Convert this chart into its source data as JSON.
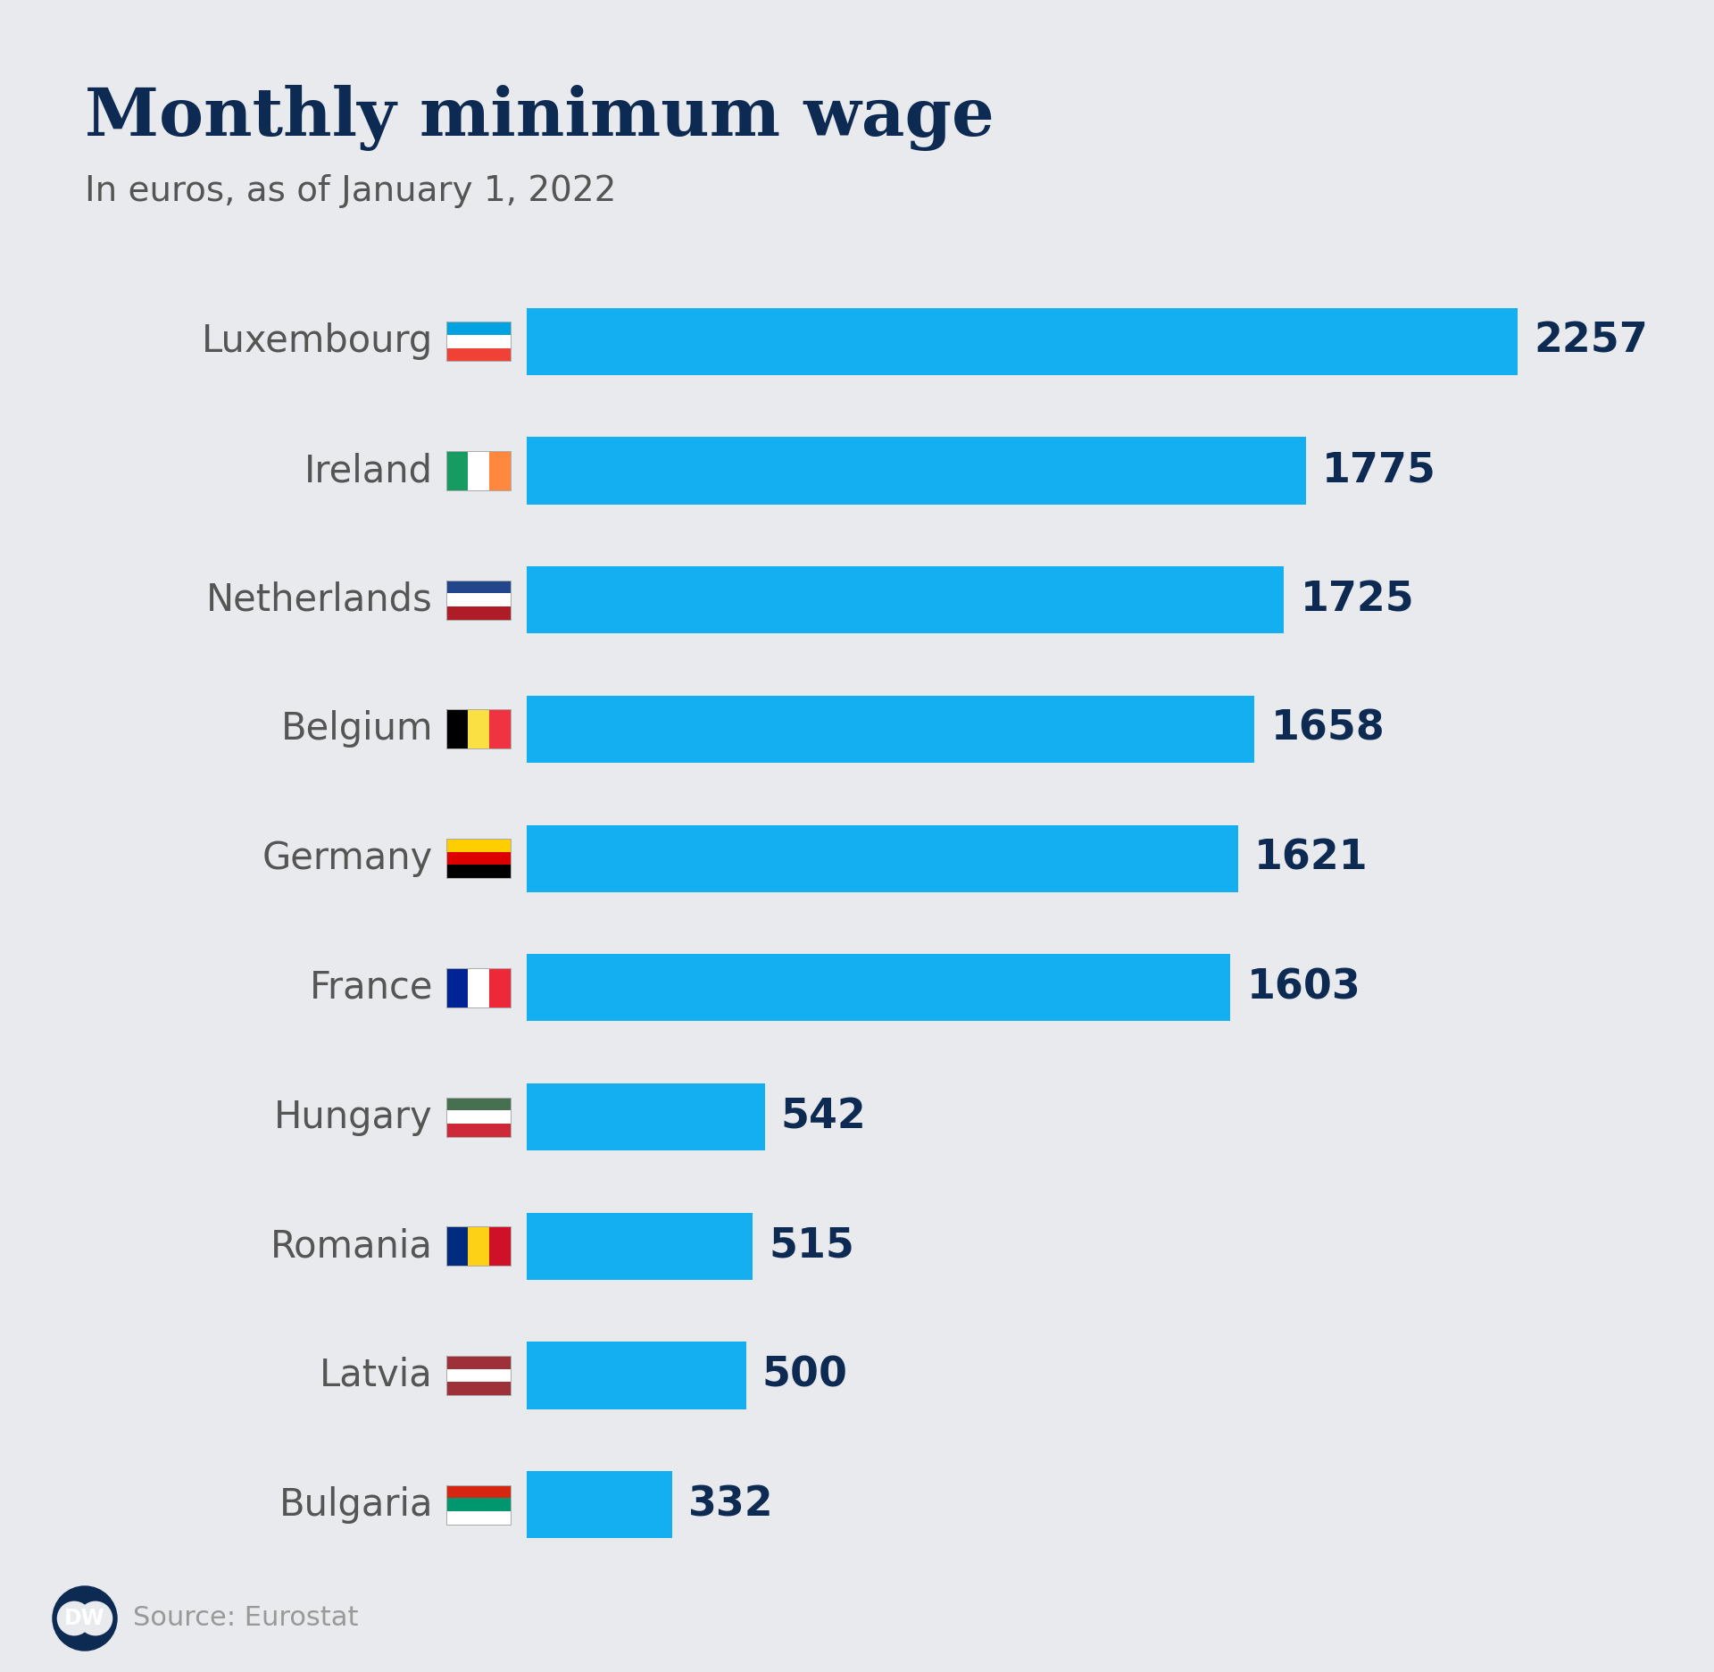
{
  "title": "Monthly minimum wage",
  "subtitle": "In euros, as of January 1, 2022",
  "source": "Source: Eurostat",
  "background_color": "#e8eaed",
  "title_color": "#0d2a52",
  "subtitle_color": "#555555",
  "bar_color": "#13aff0",
  "value_color": "#0d2a52",
  "label_color": "#555555",
  "countries": [
    "Luxembourg",
    "Ireland",
    "Netherlands",
    "Belgium",
    "Germany",
    "France",
    "Hungary",
    "Romania",
    "Latvia",
    "Bulgaria"
  ],
  "values": [
    2257,
    1775,
    1725,
    1658,
    1621,
    1603,
    542,
    515,
    500,
    332
  ],
  "flags": {
    "Luxembourg": {
      "colors": [
        "#ef4135",
        "#ffffff",
        "#00a3e0"
      ],
      "orientation": "horizontal"
    },
    "Ireland": {
      "colors": [
        "#169b62",
        "#ffffff",
        "#ff883e"
      ],
      "orientation": "vertical"
    },
    "Netherlands": {
      "colors": [
        "#ae1c28",
        "#ffffff",
        "#21468b"
      ],
      "orientation": "horizontal"
    },
    "Belgium": {
      "colors": [
        "#000000",
        "#fae042",
        "#ef3340"
      ],
      "orientation": "vertical"
    },
    "Germany": {
      "colors": [
        "#000000",
        "#dd0000",
        "#ffce00"
      ],
      "orientation": "horizontal"
    },
    "France": {
      "colors": [
        "#002395",
        "#ffffff",
        "#ed2939"
      ],
      "orientation": "vertical"
    },
    "Hungary": {
      "colors": [
        "#ce2939",
        "#ffffff",
        "#477050"
      ],
      "orientation": "horizontal"
    },
    "Romania": {
      "colors": [
        "#002b7f",
        "#fcd116",
        "#ce1126"
      ],
      "orientation": "vertical"
    },
    "Latvia": {
      "colors": [
        "#9e3039",
        "#ffffff",
        "#9e3039"
      ],
      "orientation": "horizontal"
    },
    "Bulgaria": {
      "colors": [
        "#ffffff",
        "#00966e",
        "#d62612"
      ],
      "orientation": "horizontal"
    }
  },
  "max_value": 2257,
  "title_fontsize": 54,
  "subtitle_fontsize": 28,
  "label_fontsize": 30,
  "value_fontsize": 33,
  "source_fontsize": 22
}
